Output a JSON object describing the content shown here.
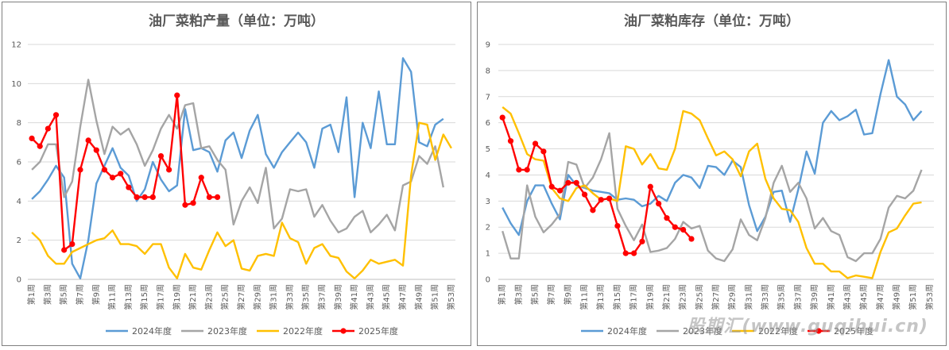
{
  "colors": {
    "2024": "#5b9bd5",
    "2023": "#a5a5a5",
    "2022": "#ffc000",
    "2025": "#ff0000"
  },
  "watermark": "股期汇(www.guqihui.cn)",
  "chart_data": [
    {
      "type": "line",
      "title": "油厂菜粕产量（单位：万吨）",
      "ylim": [
        0,
        12
      ],
      "yticks": [
        0,
        2,
        4,
        6,
        8,
        10,
        12
      ],
      "x_tick_labels": [
        "第1周",
        "第3周",
        "第5周",
        "第7周",
        "第9周",
        "第11周",
        "第13周",
        "第15周",
        "第17周",
        "第19周",
        "第21周",
        "第23周",
        "第25周",
        "第27周",
        "第29周",
        "第31周",
        "第33周",
        "第35周",
        "第37周",
        "第39周",
        "第41周",
        "第43周",
        "第45周",
        "第47周",
        "第49周",
        "第51周",
        "第53周"
      ],
      "series": [
        {
          "name": "2024年度",
          "key": "2024",
          "values": [
            4.1,
            4.5,
            5.1,
            5.8,
            5.2,
            0.8,
            0.05,
            2.0,
            4.9,
            5.8,
            6.7,
            5.7,
            5.3,
            4.0,
            4.6,
            6.0,
            5.1,
            4.5,
            4.8,
            8.7,
            6.6,
            6.7,
            6.5,
            5.5,
            7.1,
            7.5,
            6.2,
            7.6,
            8.4,
            6.4,
            5.7,
            6.5,
            7.0,
            7.5,
            7.0,
            5.7,
            7.7,
            7.9,
            6.5,
            9.3,
            4.2,
            8.0,
            6.7,
            9.6,
            6.9,
            6.9,
            11.3,
            10.6,
            7.0,
            6.8,
            7.9,
            8.2
          ]
        },
        {
          "name": "2023年度",
          "key": "2023",
          "values": [
            5.6,
            6.0,
            6.9,
            6.9,
            4.2,
            5.0,
            7.8,
            10.2,
            8.1,
            6.4,
            7.8,
            7.4,
            7.7,
            6.9,
            5.8,
            6.6,
            7.7,
            8.4,
            7.7,
            8.9,
            9.0,
            6.7,
            6.8,
            6.1,
            5.6,
            2.8,
            4.0,
            4.7,
            3.9,
            5.7,
            2.6,
            3.1,
            4.6,
            4.5,
            4.6,
            3.2,
            3.8,
            3.0,
            2.4,
            2.6,
            3.2,
            3.5,
            2.4,
            2.8,
            3.3,
            2.5,
            4.8,
            5.0,
            6.3,
            5.9,
            6.8,
            4.7
          ]
        },
        {
          "name": "2022年度",
          "key": "2022",
          "values": [
            2.4,
            2.0,
            1.2,
            0.8,
            0.8,
            1.4,
            1.6,
            1.8,
            2.0,
            2.1,
            2.5,
            1.8,
            1.8,
            1.7,
            1.3,
            1.8,
            1.8,
            0.6,
            0.05,
            1.3,
            0.6,
            0.5,
            1.5,
            2.4,
            1.7,
            2.0,
            0.55,
            0.45,
            1.2,
            1.3,
            1.2,
            2.9,
            2.1,
            1.9,
            0.8,
            1.6,
            1.8,
            1.2,
            1.1,
            0.4,
            0.05,
            0.45,
            1.0,
            0.8,
            0.9,
            1.0,
            0.7,
            5.3,
            8.0,
            7.9,
            6.1,
            7.4,
            6.7
          ]
        },
        {
          "name": "2025年度",
          "key": "2025",
          "values": [
            7.2,
            6.8,
            7.7,
            8.4,
            1.5,
            1.8,
            5.6,
            7.1,
            6.6,
            5.6,
            5.2,
            5.4,
            4.7,
            4.2,
            4.2,
            4.2,
            6.3,
            5.6,
            9.4,
            3.8,
            3.9,
            5.2,
            4.2,
            4.2
          ]
        }
      ],
      "legend": [
        "2024年度",
        "2023年度",
        "2022年度",
        "2025年度"
      ]
    },
    {
      "type": "line",
      "title": "油厂菜粕库存（单位：万吨）",
      "ylim": [
        0,
        9
      ],
      "yticks": [
        0,
        1,
        2,
        3,
        4,
        5,
        6,
        7,
        8,
        9
      ],
      "x_tick_labels": [
        "第1周",
        "第3周",
        "第5周",
        "第7周",
        "第9周",
        "第11周",
        "第13周",
        "第15周",
        "第17周",
        "第19周",
        "第21周",
        "第23周",
        "第25周",
        "第27周",
        "第29周",
        "第31周",
        "第33周",
        "第35周",
        "第37周",
        "第39周",
        "第41周",
        "第43周",
        "第45周",
        "第47周",
        "第49周",
        "第51周",
        "第53周"
      ],
      "series": [
        {
          "name": "2024年度",
          "key": "2024",
          "values": [
            2.75,
            2.15,
            1.7,
            3.0,
            3.6,
            3.6,
            2.9,
            2.3,
            4.0,
            3.6,
            3.5,
            3.4,
            3.35,
            3.3,
            3.05,
            3.1,
            3.05,
            2.8,
            2.9,
            3.2,
            3.0,
            3.7,
            4.0,
            3.9,
            3.5,
            4.35,
            4.3,
            4.0,
            4.55,
            4.3,
            2.85,
            1.85,
            2.4,
            3.35,
            3.4,
            2.2,
            3.45,
            4.9,
            4.05,
            6.0,
            6.45,
            6.1,
            6.25,
            6.5,
            5.55,
            5.6,
            7.1,
            8.4,
            7.0,
            6.7,
            6.1,
            6.45
          ]
        },
        {
          "name": "2023年度",
          "key": "2023",
          "values": [
            1.85,
            0.8,
            0.8,
            3.6,
            2.4,
            1.8,
            2.1,
            2.5,
            4.5,
            4.4,
            3.5,
            3.9,
            4.6,
            5.6,
            2.7,
            2.05,
            1.5,
            2.1,
            1.05,
            1.1,
            1.2,
            1.55,
            2.2,
            1.95,
            2.05,
            1.1,
            0.8,
            0.7,
            1.15,
            2.3,
            1.7,
            1.5,
            2.35,
            3.7,
            4.35,
            3.35,
            3.7,
            3.1,
            1.95,
            2.35,
            1.85,
            1.7,
            0.85,
            0.7,
            1.0,
            1.0,
            1.55,
            2.75,
            3.2,
            3.1,
            3.4,
            4.2
          ]
        },
        {
          "name": "2022年度",
          "key": "2022",
          "values": [
            6.6,
            6.35,
            5.6,
            4.8,
            4.6,
            4.55,
            3.5,
            3.1,
            3.0,
            3.5,
            3.6,
            3.3,
            3.05,
            3.1,
            3.0,
            5.1,
            5.0,
            4.4,
            4.8,
            4.25,
            4.2,
            5.0,
            6.45,
            6.35,
            6.1,
            5.4,
            4.75,
            4.9,
            4.6,
            3.95,
            4.9,
            5.2,
            3.85,
            3.1,
            2.7,
            2.65,
            2.2,
            1.2,
            0.6,
            0.6,
            0.3,
            0.3,
            0.05,
            0.15,
            0.1,
            0.05,
            1.05,
            1.8,
            1.95,
            2.45,
            2.9,
            2.95
          ]
        },
        {
          "name": "2025年度",
          "key": "2025",
          "values": [
            6.2,
            5.3,
            4.2,
            4.2,
            5.2,
            4.9,
            3.55,
            3.4,
            3.7,
            3.7,
            3.25,
            2.65,
            3.05,
            3.1,
            2.05,
            1.0,
            1.0,
            1.45,
            3.55,
            2.9,
            2.35,
            2.0,
            1.9,
            1.55
          ]
        }
      ],
      "legend": [
        "2024年度",
        "2023年度",
        "2022年度",
        "2025年度"
      ]
    }
  ]
}
